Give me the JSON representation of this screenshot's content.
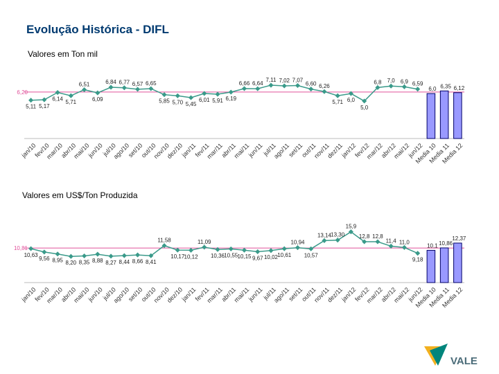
{
  "title": "Evolução Histórica - DIFL",
  "logo": "VALE",
  "chart_data": [
    {
      "type": "combo",
      "title": "Valores em Ton mil",
      "categories": [
        "jan/10",
        "fev/10",
        "mar/10",
        "abr/10",
        "mai/10",
        "jun/10",
        "jul/10",
        "ago/10",
        "set/10",
        "out/10",
        "nov/10",
        "dez/10",
        "jan/11",
        "fev/11",
        "mar/11",
        "abr/11",
        "mai/11",
        "jun/11",
        "jul/11",
        "ago/11",
        "set/11",
        "out/11",
        "nov/11",
        "dez/11",
        "jan/12",
        "fev/12",
        "mar/12",
        "abr/12",
        "mai/12",
        "jun/12",
        "Media 10",
        "Media 11",
        "Media 12"
      ],
      "ylim": [
        0,
        8.5
      ],
      "reference_line": {
        "value": 6.2,
        "label": "6,20",
        "color": "#e0509a"
      },
      "series": [
        {
          "type": "line",
          "color": "#3a9a8a",
          "values": [
            5.11,
            5.17,
            6.14,
            5.71,
            6.51,
            6.09,
            6.84,
            6.77,
            6.57,
            6.65,
            5.85,
            5.7,
            5.45,
            6.01,
            5.91,
            6.19,
            6.66,
            6.64,
            7.11,
            7.02,
            7.07,
            6.6,
            6.26,
            5.71,
            6.0,
            5.0,
            6.8,
            7.0,
            6.9,
            6.59,
            null,
            null,
            null
          ],
          "value_labels": [
            "5,11",
            "5,17",
            "6,14",
            "5,71",
            "6,51",
            "6,09",
            "6,84",
            "6,77",
            "6,57",
            "6,65",
            "5,85",
            "5,70",
            "5,45",
            "6,01",
            "5,91",
            "6,19",
            "6,66",
            "6,64",
            "7,11",
            "7,02",
            "7,07",
            "6,60",
            "6,26",
            "5,71",
            "6,0",
            "5,0",
            "6,8",
            "7,0",
            "6,9",
            "6,59",
            null,
            null,
            null
          ]
        },
        {
          "type": "bar",
          "color": "#9999ff",
          "values": [
            null,
            null,
            null,
            null,
            null,
            null,
            null,
            null,
            null,
            null,
            null,
            null,
            null,
            null,
            null,
            null,
            null,
            null,
            null,
            null,
            null,
            null,
            null,
            null,
            null,
            null,
            null,
            null,
            null,
            null,
            6.0,
            6.35,
            6.12
          ],
          "value_labels": [
            null,
            null,
            null,
            null,
            null,
            null,
            null,
            null,
            null,
            null,
            null,
            null,
            null,
            null,
            null,
            null,
            null,
            null,
            null,
            null,
            null,
            null,
            null,
            null,
            null,
            null,
            null,
            null,
            null,
            null,
            "6,0",
            "6,35",
            "6,12"
          ]
        }
      ]
    },
    {
      "type": "combo",
      "title": "Valores em US$/Ton Produzida",
      "categories": [
        "jan/10",
        "fev/10",
        "mar/10",
        "abr/10",
        "mai/10",
        "jun/10",
        "jul/10",
        "ago/10",
        "set/10",
        "out/10",
        "nov/10",
        "dez/10",
        "jan/11",
        "fev/11",
        "mar/11",
        "abr/11",
        "mai/11",
        "jun/11",
        "jul/11",
        "ago/11",
        "set/11",
        "out/11",
        "nov/11",
        "dez/11",
        "jan/12",
        "fev/12",
        "mar/12",
        "abr/12",
        "mai/12",
        "jun/12",
        "Media 10",
        "Media 11",
        "Media 12"
      ],
      "ylim": [
        0,
        18
      ],
      "reference_line": {
        "value": 10.81,
        "label": "10,81",
        "color": "#e0509a"
      },
      "series": [
        {
          "type": "line",
          "color": "#3a9a8a",
          "values": [
            10.63,
            9.56,
            8.95,
            8.2,
            8.35,
            8.88,
            8.27,
            8.44,
            8.66,
            8.41,
            11.58,
            10.17,
            10.12,
            11.09,
            10.36,
            10.55,
            10.15,
            9.67,
            10.02,
            10.61,
            10.94,
            10.57,
            13.14,
            13.3,
            15.9,
            12.8,
            12.8,
            11.4,
            11.0,
            9.18,
            null,
            null,
            null
          ],
          "value_labels": [
            "10,63",
            "9,56",
            "8,95",
            "8,20",
            "8,35",
            "8,88",
            "8,27",
            "8,44",
            "8,66",
            "8,41",
            "11,58",
            "10,17",
            "10,12",
            "11,09",
            "10,36",
            "10,55",
            "10,15",
            "9,67",
            "10,02",
            "10,61",
            "10,94",
            "10,57",
            "13,14",
            "13,30",
            "15,9",
            "12,8",
            "12,8",
            "11,4",
            "11,0",
            "9,18",
            null,
            null,
            null
          ]
        },
        {
          "type": "bar",
          "color": "#9999ff",
          "values": [
            null,
            null,
            null,
            null,
            null,
            null,
            null,
            null,
            null,
            null,
            null,
            null,
            null,
            null,
            null,
            null,
            null,
            null,
            null,
            null,
            null,
            null,
            null,
            null,
            null,
            null,
            null,
            null,
            null,
            null,
            10.1,
            10.86,
            12.37
          ],
          "value_labels": [
            null,
            null,
            null,
            null,
            null,
            null,
            null,
            null,
            null,
            null,
            null,
            null,
            null,
            null,
            null,
            null,
            null,
            null,
            null,
            null,
            null,
            null,
            null,
            null,
            null,
            null,
            null,
            null,
            null,
            null,
            "10,1",
            "10,86",
            "12,37"
          ]
        }
      ]
    }
  ]
}
